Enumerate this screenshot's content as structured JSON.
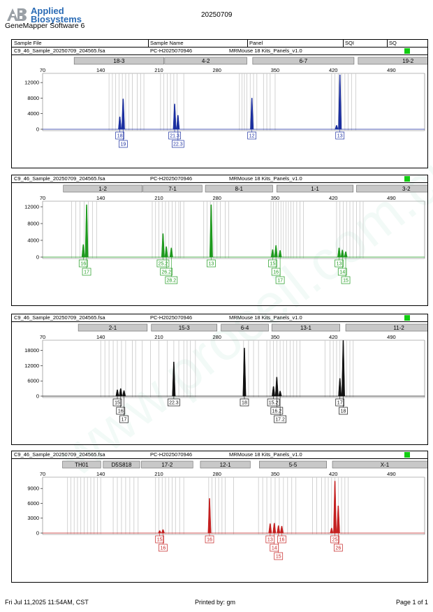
{
  "header": {
    "brand_line1": "Applied",
    "brand_line2": "Biosystems",
    "software": "GeneMapper Software 6",
    "run_date": "20250709"
  },
  "table_header": {
    "sample_file": "Sample File",
    "sample_name": "Sample Name",
    "panel": "Panel",
    "sqi": "SQI",
    "sq": "SQ"
  },
  "footer": {
    "date": "Fri Jul 11,2025 11:54AM, CST",
    "printed_by": "Printed by: gm",
    "page": "Page 1 of 1"
  },
  "watermark": "www.procell.com.cn",
  "colors": {
    "blue": "#1a2ea0",
    "green": "#1e9a1e",
    "black": "#111111",
    "red": "#c42020",
    "sq_green": "#11cc11",
    "bin_gray": "#c8c8c8",
    "marker_fill": "#c8c8c8"
  },
  "chart_data": [
    {
      "type": "line",
      "info": {
        "sample_file": "C9_46_Sample_20250709_204565.fsa",
        "sample_name": "PC-H2025070946",
        "panel": "MRMouse 18 Kits_Panels_v1.0"
      },
      "x_ticks": [
        70,
        140,
        210,
        280,
        350,
        420,
        490
      ],
      "y_ticks": [
        0,
        4000,
        8000,
        12000
      ],
      "ylim": [
        0,
        14000
      ],
      "xlim": [
        70,
        530
      ],
      "color": "blue",
      "markers": [
        {
          "label": "18-3",
          "x1": 108,
          "x2": 216
        },
        {
          "label": "4-2",
          "x1": 217,
          "x2": 316
        },
        {
          "label": "6-7",
          "x1": 323,
          "x2": 445
        },
        {
          "label": "19-2",
          "x1": 450,
          "x2": 570
        }
      ],
      "bins": [
        150,
        154,
        158,
        162,
        166,
        170,
        174,
        178,
        184,
        188,
        192,
        212,
        216,
        220,
        224,
        228,
        232,
        240,
        307,
        310,
        313,
        316,
        320,
        324,
        328,
        336,
        340,
        344,
        350,
        418,
        422,
        426,
        430,
        434,
        438,
        442,
        447
      ],
      "peaks": [
        {
          "x": 163,
          "h": 3200
        },
        {
          "x": 167,
          "h": 7800
        },
        {
          "x": 229,
          "h": 6500
        },
        {
          "x": 233,
          "h": 3600
        },
        {
          "x": 322,
          "h": 8000
        },
        {
          "x": 424,
          "h": 1000
        },
        {
          "x": 428,
          "h": 14000
        }
      ],
      "allele_labels": [
        {
          "text": "18",
          "x": 163,
          "row": 0
        },
        {
          "text": "19",
          "x": 167,
          "row": 1
        },
        {
          "text": "21.3",
          "x": 229,
          "row": 0
        },
        {
          "text": "22.3",
          "x": 233,
          "row": 1
        },
        {
          "text": "12",
          "x": 322,
          "row": 0
        },
        {
          "text": "13",
          "x": 428,
          "row": 0
        }
      ]
    },
    {
      "type": "line",
      "info": {
        "sample_file": "C9_46_Sample_20250709_204565.fsa",
        "sample_name": "PC-H2025070946",
        "panel": "MRMouse 18 Kits_Panels_v1.0"
      },
      "x_ticks": [
        70,
        140,
        210,
        280,
        350,
        420,
        490
      ],
      "y_ticks": [
        0,
        4000,
        8000,
        12000
      ],
      "ylim": [
        0,
        13000
      ],
      "xlim": [
        70,
        530
      ],
      "color": "green",
      "markers": [
        {
          "label": "1-2",
          "x1": 95,
          "x2": 190
        },
        {
          "label": "7-1",
          "x1": 191,
          "x2": 262
        },
        {
          "label": "8-1",
          "x1": 266,
          "x2": 347
        },
        {
          "label": "1-1",
          "x1": 352,
          "x2": 444
        },
        {
          "label": "3-2",
          "x1": 448,
          "x2": 568
        }
      ],
      "bins": [
        105,
        110,
        115,
        120,
        125,
        130,
        135,
        202,
        206,
        210,
        214,
        218,
        222,
        226,
        230,
        234,
        236,
        240,
        264,
        268,
        272,
        276,
        280,
        284,
        290,
        294,
        345,
        348,
        351,
        354,
        357,
        360,
        363,
        366,
        369,
        372,
        376,
        380,
        384,
        424,
        428,
        432,
        436,
        440,
        444,
        448,
        452,
        456
      ],
      "peaks": [
        {
          "x": 119,
          "h": 3000
        },
        {
          "x": 123,
          "h": 12500
        },
        {
          "x": 215,
          "h": 5600
        },
        {
          "x": 219,
          "h": 2500
        },
        {
          "x": 225,
          "h": 2200
        },
        {
          "x": 273,
          "h": 12500
        },
        {
          "x": 347,
          "h": 1800
        },
        {
          "x": 351,
          "h": 2800
        },
        {
          "x": 356,
          "h": 1600
        },
        {
          "x": 427,
          "h": 2200
        },
        {
          "x": 431,
          "h": 1700
        },
        {
          "x": 435,
          "h": 1300
        }
      ],
      "allele_labels": [
        {
          "text": "16",
          "x": 119,
          "row": 0
        },
        {
          "text": "17",
          "x": 123,
          "row": 1
        },
        {
          "text": "25.2",
          "x": 215,
          "row": 0
        },
        {
          "text": "26.2",
          "x": 219,
          "row": 1
        },
        {
          "text": "28.2",
          "x": 225,
          "row": 2
        },
        {
          "text": "13",
          "x": 273,
          "row": 0
        },
        {
          "text": "15",
          "x": 347,
          "row": 0
        },
        {
          "text": "16",
          "x": 351,
          "row": 1
        },
        {
          "text": "17",
          "x": 356,
          "row": 2
        },
        {
          "text": "13",
          "x": 427,
          "row": 0
        },
        {
          "text": "14",
          "x": 431,
          "row": 1
        },
        {
          "text": "15",
          "x": 435,
          "row": 2
        }
      ]
    },
    {
      "type": "line",
      "info": {
        "sample_file": "C9_46_Sample_20250709_204565.fsa",
        "sample_name": "PC-H2025070946",
        "panel": "MRMouse 18 Kits_Panels_v1.0"
      },
      "x_ticks": [
        70,
        140,
        210,
        280,
        350,
        420,
        490
      ],
      "y_ticks": [
        0,
        6000,
        12000,
        18000
      ],
      "ylim": [
        0,
        21500
      ],
      "xlim": [
        70,
        530
      ],
      "color": "black",
      "markers": [
        {
          "label": "2-1",
          "x1": 113,
          "x2": 196
        },
        {
          "label": "15-3",
          "x1": 201,
          "x2": 280
        },
        {
          "label": "6-4",
          "x1": 285,
          "x2": 342
        },
        {
          "label": "13-1",
          "x1": 346,
          "x2": 428
        },
        {
          "label": "11-2",
          "x1": 435,
          "x2": 563
        }
      ],
      "bins": [
        140,
        145,
        150,
        155,
        160,
        165,
        170,
        178,
        182,
        190,
        200,
        210,
        220,
        228,
        234,
        240,
        244,
        248,
        254,
        312,
        318,
        324,
        330,
        340,
        344,
        348,
        352,
        356,
        360,
        364,
        368,
        372,
        376,
        380,
        410,
        416,
        420,
        424,
        428,
        432,
        436,
        440,
        444
      ],
      "peaks": [
        {
          "x": 160,
          "h": 2500
        },
        {
          "x": 164,
          "h": 3000
        },
        {
          "x": 168,
          "h": 2200
        },
        {
          "x": 228,
          "h": 13500
        },
        {
          "x": 313,
          "h": 19000
        },
        {
          "x": 348,
          "h": 3800
        },
        {
          "x": 352,
          "h": 7500
        },
        {
          "x": 356,
          "h": 2000
        },
        {
          "x": 428,
          "h": 7000
        },
        {
          "x": 432,
          "h": 22000
        }
      ],
      "allele_labels": [
        {
          "text": "15",
          "x": 160,
          "row": 0
        },
        {
          "text": "16",
          "x": 164,
          "row": 1
        },
        {
          "text": "17",
          "x": 168,
          "row": 2
        },
        {
          "text": "22.3",
          "x": 228,
          "row": 0
        },
        {
          "text": "18",
          "x": 313,
          "row": 0
        },
        {
          "text": "15.2",
          "x": 348,
          "row": 0
        },
        {
          "text": "16.2",
          "x": 352,
          "row": 1
        },
        {
          "text": "17.2",
          "x": 356,
          "row": 2
        },
        {
          "text": "17",
          "x": 428,
          "row": 0
        },
        {
          "text": "18",
          "x": 432,
          "row": 1
        }
      ]
    },
    {
      "type": "line",
      "info": {
        "sample_file": "C9_46_Sample_20250709_204565.fsa",
        "sample_name": "PC-H2025070946",
        "panel": "MRMouse 18 Kits_Panels_v1.0"
      },
      "x_ticks": [
        70,
        140,
        210,
        280,
        350,
        420,
        490
      ],
      "y_ticks": [
        0,
        3000,
        6000,
        9000
      ],
      "ylim": [
        0,
        11000
      ],
      "xlim": [
        70,
        530
      ],
      "color": "red",
      "markers": [
        {
          "label": "TH01",
          "x1": 94,
          "x2": 140
        },
        {
          "label": "D5S818",
          "x1": 143,
          "x2": 187
        },
        {
          "label": "17-2",
          "x1": 189,
          "x2": 251
        },
        {
          "label": "12-1",
          "x1": 260,
          "x2": 320
        },
        {
          "label": "5-5",
          "x1": 331,
          "x2": 412
        },
        {
          "label": "X-1",
          "x1": 419,
          "x2": 545
        }
      ],
      "bins": [
        100,
        104,
        108,
        112,
        116,
        120,
        124,
        128,
        132,
        136,
        140,
        155,
        160,
        165,
        170,
        175,
        180,
        185,
        206,
        210,
        214,
        218,
        222,
        226,
        230,
        235,
        240,
        270,
        274,
        278,
        282,
        286,
        290,
        300,
        330,
        335,
        340,
        345,
        350,
        355,
        360,
        365,
        370,
        375,
        395,
        400,
        406,
        410,
        414,
        418,
        422,
        426,
        430,
        434,
        438
      ],
      "peaks": [
        {
          "x": 211,
          "h": 500
        },
        {
          "x": 215,
          "h": 700
        },
        {
          "x": 271,
          "h": 7000
        },
        {
          "x": 344,
          "h": 1900
        },
        {
          "x": 349,
          "h": 2000
        },
        {
          "x": 354,
          "h": 1500
        },
        {
          "x": 358,
          "h": 1400
        },
        {
          "x": 418,
          "h": 1000
        },
        {
          "x": 422,
          "h": 10500
        },
        {
          "x": 426,
          "h": 5500
        }
      ],
      "allele_labels": [
        {
          "text": "15",
          "x": 211,
          "row": 0
        },
        {
          "text": "16",
          "x": 215,
          "row": 1
        },
        {
          "text": "16",
          "x": 271,
          "row": 0
        },
        {
          "text": "13",
          "x": 344,
          "row": 0
        },
        {
          "text": "14",
          "x": 349,
          "row": 1
        },
        {
          "text": "15",
          "x": 354,
          "row": 2
        },
        {
          "text": "16",
          "x": 358,
          "row": 0
        },
        {
          "text": "25",
          "x": 422,
          "row": 0
        },
        {
          "text": "26",
          "x": 426,
          "row": 1
        }
      ]
    }
  ]
}
